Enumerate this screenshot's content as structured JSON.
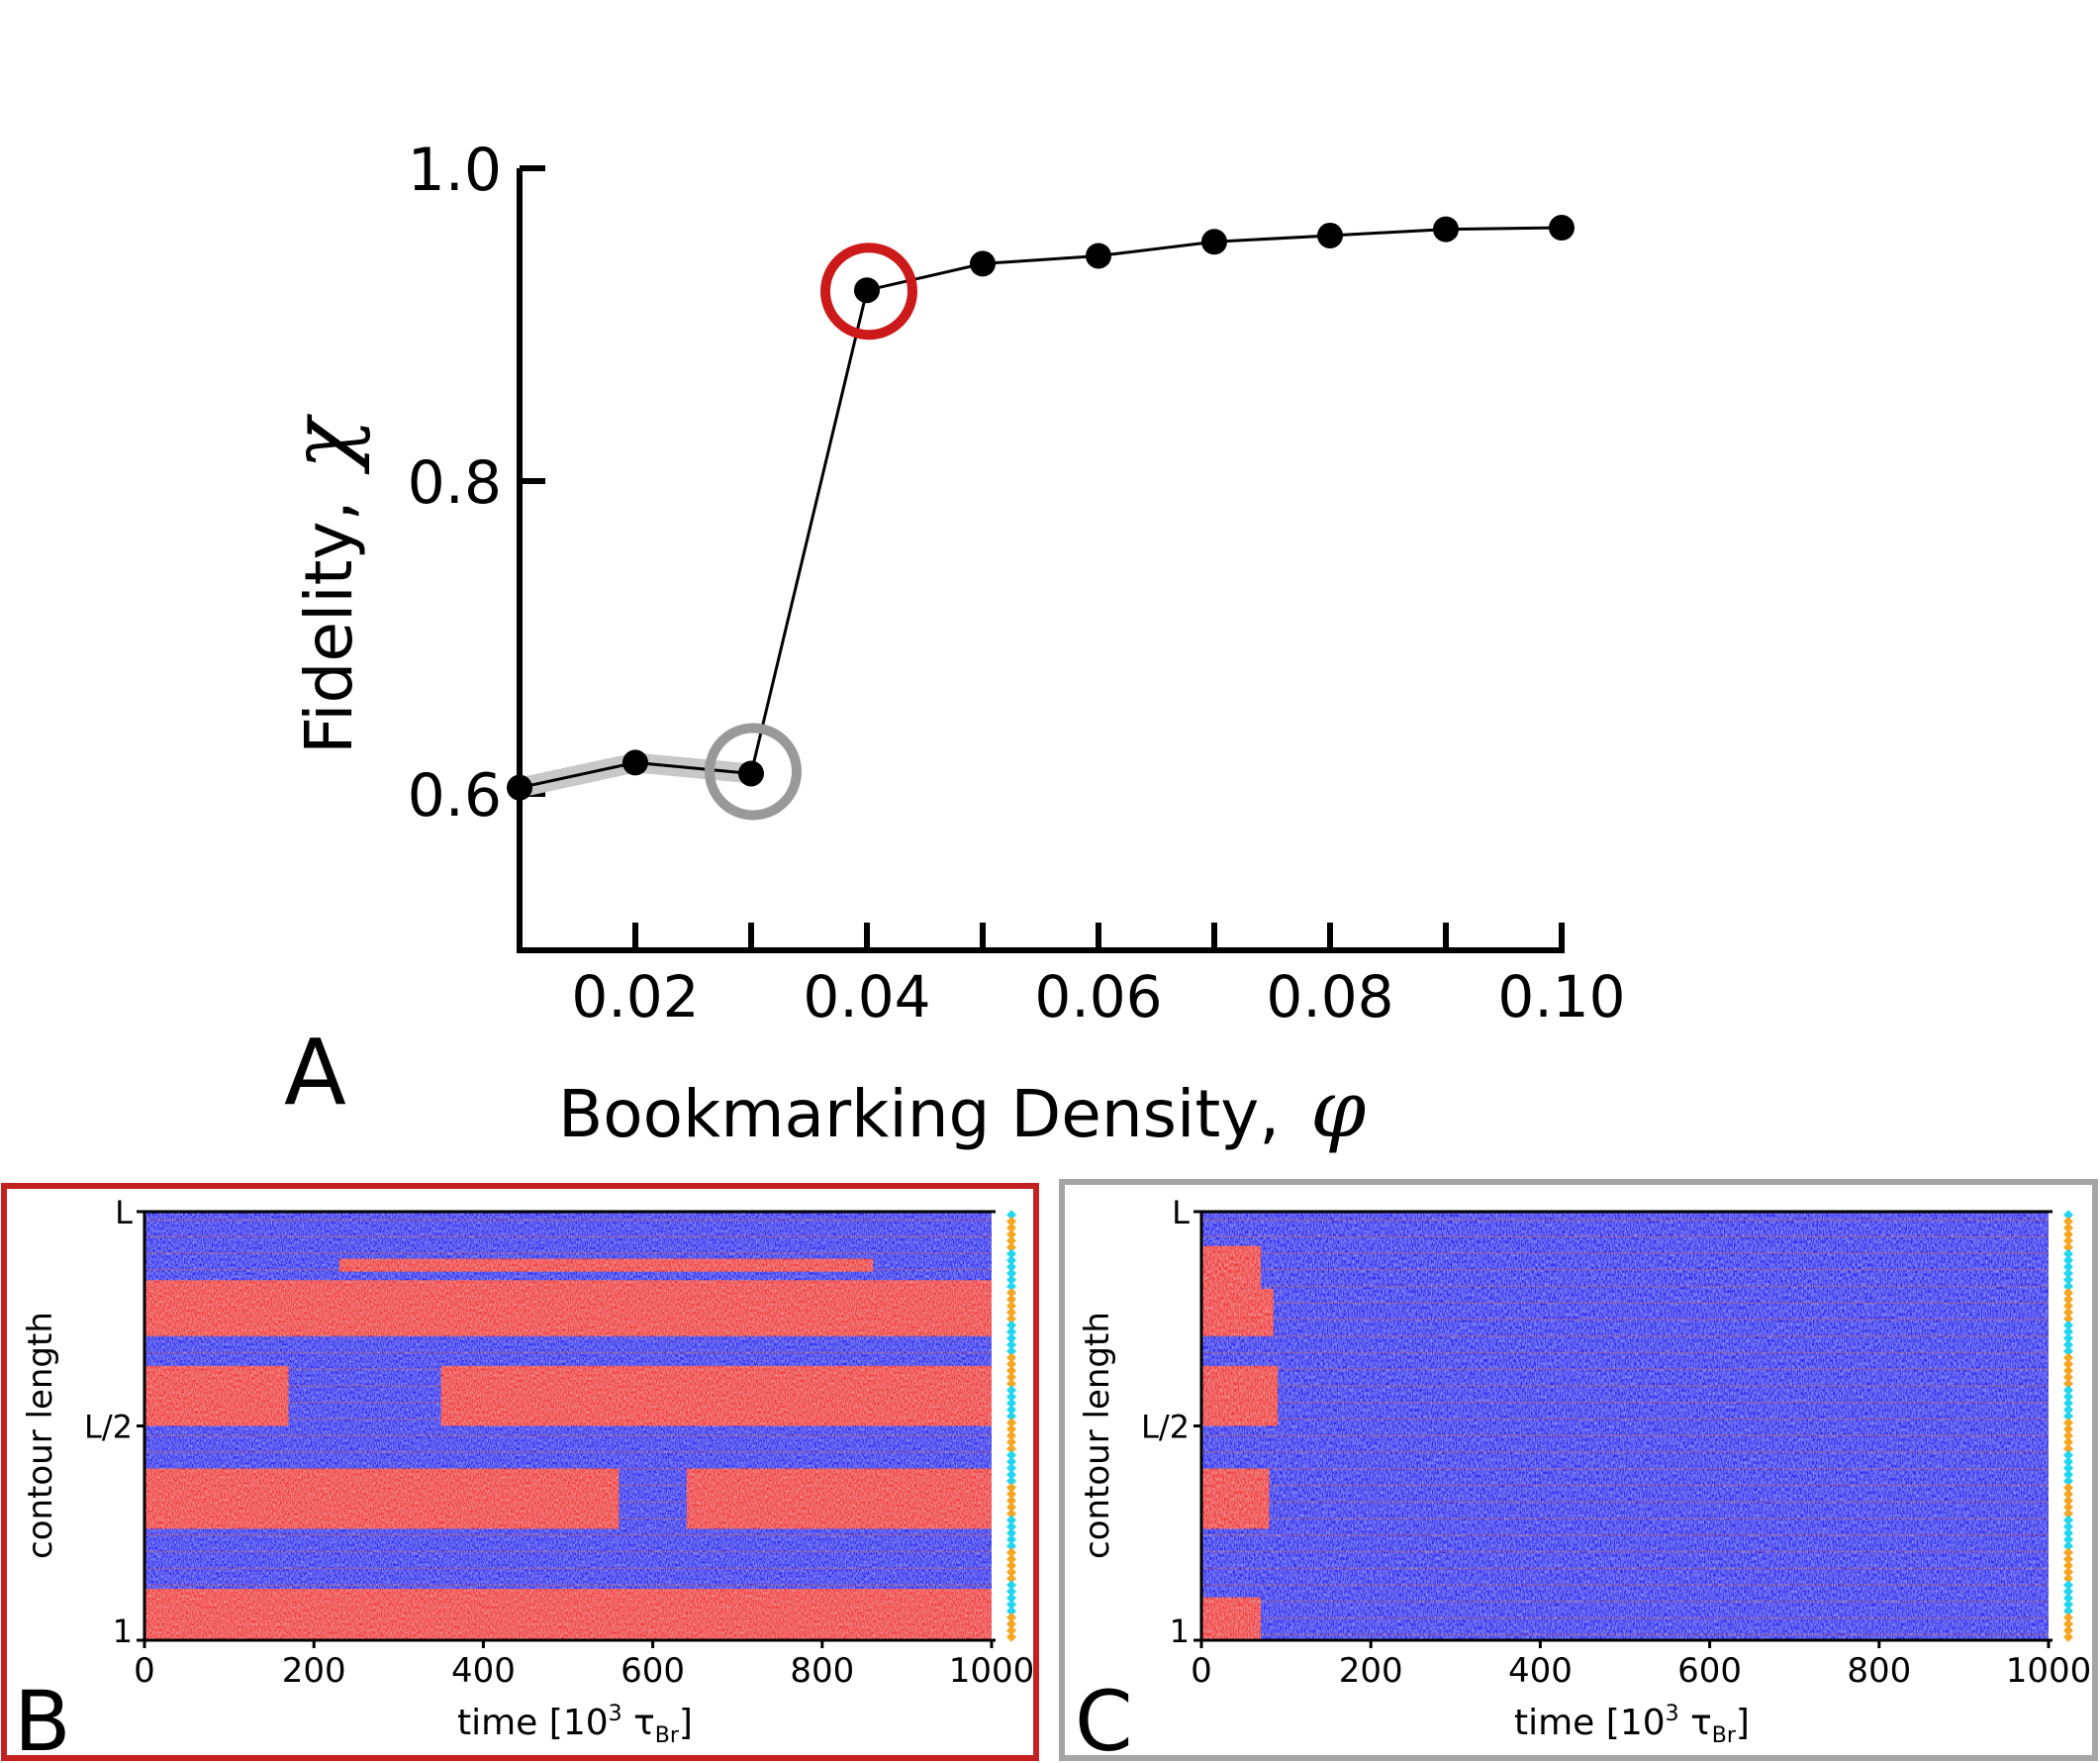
{
  "colors": {
    "line": "#000000",
    "highlight_red": "#cc1a1a",
    "highlight_gray": "#999999",
    "gray_band": "#c8c8c8",
    "heat_red": "#f03a3a",
    "heat_blue": "#2b2bf0",
    "bookmark_cyan": "#22d6f0",
    "bookmark_orange": "#f5a623",
    "frame_red": "#c42020",
    "frame_gray": "#a5a5a5"
  },
  "chart_data": [
    {
      "type": "line",
      "panel": "A",
      "xlabel": "Bookmarking Density,",
      "xlabel_symbol": "φ",
      "ylabel": "Fidelity,",
      "ylabel_symbol": "χ",
      "x": [
        0.01,
        0.02,
        0.03,
        0.04,
        0.05,
        0.06,
        0.07,
        0.08,
        0.09,
        0.1
      ],
      "y": [
        0.604,
        0.62,
        0.613,
        0.922,
        0.939,
        0.944,
        0.953,
        0.957,
        0.961,
        0.962
      ],
      "xlim": [
        0.01,
        0.1
      ],
      "ylim": [
        0.5,
        1.0
      ],
      "xticks": [
        0.02,
        0.04,
        0.06,
        0.08,
        0.1
      ],
      "xtick_labels": [
        "0.02",
        "0.04",
        "0.06",
        "0.08",
        "0.10"
      ],
      "yticks": [
        0.6,
        0.8,
        1.0
      ],
      "ytick_labels": [
        "0.6",
        "0.8",
        "1.0"
      ],
      "highlight_red_x": 0.04,
      "highlight_gray_x": 0.03,
      "grid": false
    },
    {
      "type": "heatmap",
      "panel": "B",
      "xlabel": "time [10",
      "xlabel_sup": "3",
      "xlabel_tau": " τ",
      "xlabel_sub": "Br",
      "xlabel_end": "]",
      "ylabel": "contour length",
      "xlim": [
        0,
        1000
      ],
      "xticks": [
        0,
        200,
        400,
        600,
        800,
        1000
      ],
      "xtick_labels": [
        "0",
        "200",
        "400",
        "600",
        "800",
        "1000"
      ],
      "ytick_labels": [
        "1",
        "L/2",
        "L"
      ],
      "bookmark_pattern": [
        "c",
        "o",
        "o",
        "o",
        "o",
        "o",
        "c",
        "c",
        "c",
        "c",
        "c",
        "c",
        "o",
        "o",
        "o",
        "o",
        "o",
        "c",
        "c",
        "c",
        "c",
        "c",
        "o",
        "o",
        "o",
        "o",
        "o",
        "c",
        "c",
        "c",
        "c",
        "c",
        "o",
        "o",
        "o",
        "o",
        "o",
        "c",
        "c",
        "c",
        "c",
        "c",
        "o",
        "o",
        "o",
        "o",
        "o",
        "c",
        "c",
        "c",
        "c",
        "c",
        "o",
        "o",
        "o",
        "o",
        "o",
        "c",
        "c",
        "c",
        "c",
        "c",
        "o",
        "o",
        "o",
        "o"
      ],
      "red_bands": [
        {
          "y0": 0.0,
          "y1": 0.12,
          "segments": [
            [
              0,
              1000
            ]
          ]
        },
        {
          "y0": 0.26,
          "y1": 0.4,
          "segments": [
            [
              0,
              560
            ],
            [
              640,
              1000
            ]
          ]
        },
        {
          "y0": 0.5,
          "y1": 0.64,
          "segments": [
            [
              0,
              170
            ],
            [
              350,
              1000
            ]
          ]
        },
        {
          "y0": 0.71,
          "y1": 0.84,
          "segments": [
            [
              0,
              1000
            ]
          ]
        },
        {
          "y0": 0.88,
          "y1": 1.0,
          "segments": []
        },
        {
          "y0": 0.86,
          "y1": 0.89,
          "segments": [
            [
              230,
              860
            ]
          ]
        }
      ]
    },
    {
      "type": "heatmap",
      "panel": "C",
      "xlabel": "time [10",
      "xlabel_sup": "3",
      "xlabel_tau": " τ",
      "xlabel_sub": "Br",
      "xlabel_end": "]",
      "ylabel": "contour length",
      "xlim": [
        0,
        1000
      ],
      "xticks": [
        0,
        200,
        400,
        600,
        800,
        1000
      ],
      "xtick_labels": [
        "0",
        "200",
        "400",
        "600",
        "800",
        "1000"
      ],
      "ytick_labels": [
        "1",
        "L/2",
        "L"
      ],
      "red_bands": [
        {
          "y0": 0.0,
          "y1": 0.1,
          "segments": [
            [
              0,
              70
            ]
          ]
        },
        {
          "y0": 0.26,
          "y1": 0.4,
          "segments": [
            [
              0,
              80
            ]
          ]
        },
        {
          "y0": 0.5,
          "y1": 0.64,
          "segments": [
            [
              0,
              90
            ]
          ]
        },
        {
          "y0": 0.71,
          "y1": 0.82,
          "segments": [
            [
              0,
              85
            ]
          ]
        },
        {
          "y0": 0.82,
          "y1": 0.92,
          "segments": [
            [
              0,
              70
            ]
          ]
        }
      ]
    }
  ],
  "panel_letters": {
    "a": "A",
    "b": "B",
    "c": "C"
  }
}
